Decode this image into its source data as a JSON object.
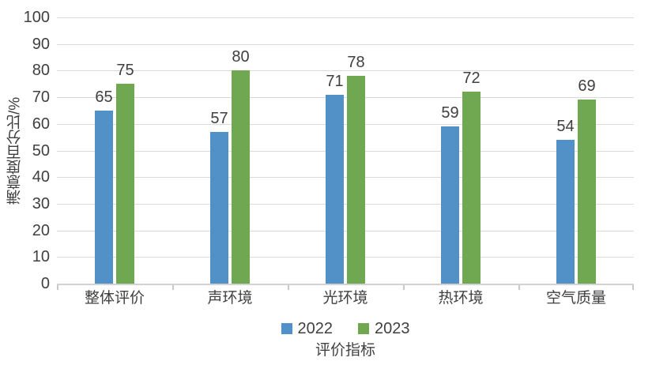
{
  "chart_data": {
    "type": "bar",
    "title": "",
    "categories": [
      "整体评价",
      "声环境",
      "光环境",
      "热环境",
      "空气质量"
    ],
    "series": [
      {
        "name": "2022",
        "color": "#5291C8",
        "values": [
          65,
          57,
          71,
          59,
          54
        ]
      },
      {
        "name": "2023",
        "color": "#70A851",
        "values": [
          75,
          80,
          78,
          72,
          69
        ]
      }
    ],
    "xlabel": "评价指标",
    "ylabel": "满意度百分比/%",
    "ylim": [
      0,
      100
    ],
    "ytick_step": 10,
    "grid": true,
    "legend_position": "bottom",
    "value_labels": true
  },
  "style": {
    "background": "#FFFFFF",
    "text_color": "#404040",
    "gridline_color": "#DBDBDB",
    "axis_line_color": "#D2D2D2",
    "tick_color": "#C9C9C9"
  }
}
